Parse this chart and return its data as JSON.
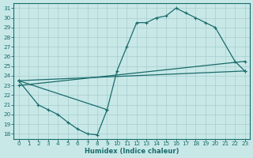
{
  "xlabel": "Humidex (Indice chaleur)",
  "xlim": [
    -0.5,
    23.5
  ],
  "ylim": [
    17.5,
    31.5
  ],
  "xticks": [
    0,
    1,
    2,
    3,
    4,
    5,
    6,
    7,
    8,
    9,
    10,
    11,
    12,
    13,
    14,
    15,
    16,
    17,
    18,
    19,
    20,
    21,
    22,
    23
  ],
  "yticks": [
    18,
    19,
    20,
    21,
    22,
    23,
    24,
    25,
    26,
    27,
    28,
    29,
    30,
    31
  ],
  "bg_color": "#c8e8e8",
  "grid_color": "#a8cccc",
  "line_color": "#1a6b6b",
  "curves": [
    {
      "x": [
        0,
        2,
        3,
        4,
        5,
        6,
        7,
        8,
        9
      ],
      "y": [
        23.5,
        21.0,
        20.5,
        20.0,
        19.2,
        18.5,
        18.0,
        17.9,
        20.5
      ]
    },
    {
      "x": [
        0,
        9,
        10,
        11,
        12,
        13,
        14,
        15,
        16,
        17,
        18,
        19,
        20,
        22,
        23
      ],
      "y": [
        23.5,
        20.5,
        24.5,
        27.0,
        29.5,
        29.5,
        30.0,
        30.2,
        31.0,
        30.5,
        30.0,
        29.5,
        29.0,
        25.5,
        24.5
      ]
    },
    {
      "x": [
        0,
        23
      ],
      "y": [
        23.5,
        24.5
      ]
    },
    {
      "x": [
        0,
        23
      ],
      "y": [
        23.0,
        25.5
      ]
    }
  ]
}
